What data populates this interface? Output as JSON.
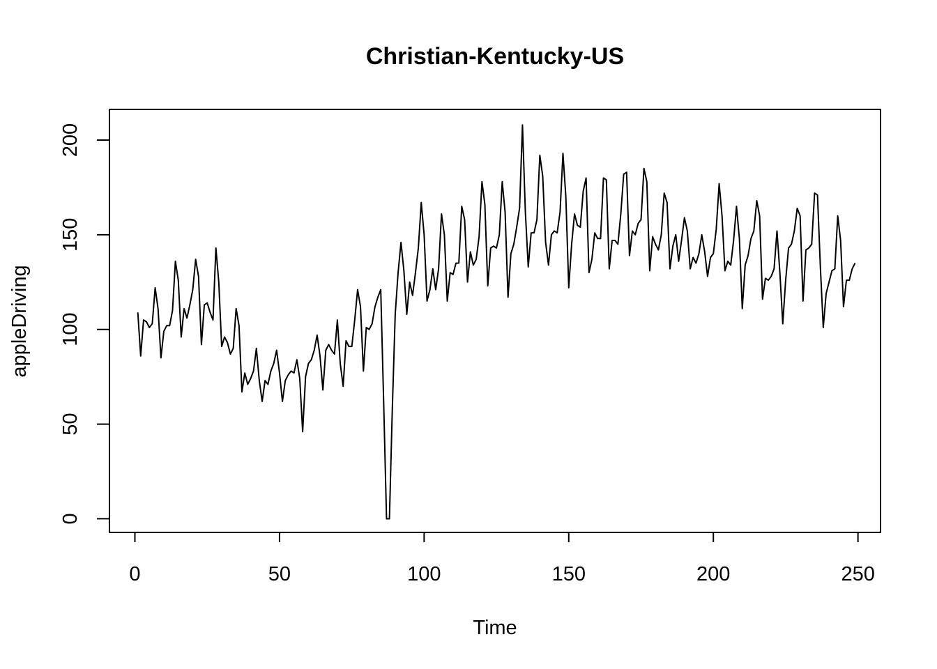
{
  "chart_data": {
    "type": "line",
    "title": "Christian-Kentucky-US",
    "xlabel": "Time",
    "ylabel": "appleDriving",
    "xlim": [
      -8.8,
      257.8
    ],
    "ylim": [
      -7.2,
      216.2
    ],
    "x_ticks": [
      0,
      50,
      100,
      150,
      200,
      250
    ],
    "y_ticks": [
      0,
      50,
      100,
      150,
      200
    ],
    "grid": false,
    "legend": "none",
    "line_color": "#000000",
    "x_start": 1,
    "values": [
      109,
      86,
      105,
      104,
      101,
      103,
      122,
      111,
      85,
      99,
      102,
      102,
      110,
      136,
      126,
      96,
      111,
      106,
      113,
      121,
      137,
      128,
      92,
      113,
      114,
      109,
      105,
      143,
      125,
      91,
      96,
      93,
      87,
      90,
      111,
      102,
      67,
      77,
      71,
      74,
      78,
      90,
      73,
      62,
      73,
      71,
      78,
      82,
      89,
      77,
      62,
      73,
      76,
      78,
      77,
      84,
      74,
      46,
      75,
      82,
      84,
      89,
      97,
      86,
      68,
      89,
      92,
      89,
      87,
      105,
      82,
      70,
      94,
      91,
      91,
      105,
      121,
      112,
      78,
      101,
      100,
      103,
      112,
      117,
      121,
      62,
      0,
      0,
      58,
      108,
      130,
      146,
      131,
      108,
      125,
      118,
      130,
      143,
      167,
      150,
      115,
      121,
      132,
      121,
      132,
      161,
      150,
      115,
      130,
      129,
      135,
      135,
      165,
      158,
      125,
      141,
      134,
      137,
      149,
      178,
      166,
      123,
      143,
      144,
      143,
      150,
      178,
      162,
      117,
      140,
      145,
      154,
      164,
      208,
      162,
      133,
      151,
      151,
      158,
      192,
      181,
      146,
      134,
      150,
      152,
      151,
      162,
      193,
      170,
      122,
      145,
      161,
      155,
      154,
      173,
      180,
      130,
      137,
      151,
      148,
      148,
      180,
      179,
      132,
      147,
      147,
      145,
      161,
      182,
      183,
      139,
      152,
      150,
      156,
      158,
      185,
      178,
      131,
      149,
      145,
      142,
      150,
      172,
      167,
      132,
      144,
      150,
      136,
      147,
      159,
      152,
      132,
      138,
      135,
      140,
      150,
      141,
      128,
      138,
      140,
      153,
      177,
      160,
      131,
      136,
      134,
      147,
      165,
      148,
      111,
      134,
      139,
      148,
      152,
      168,
      160,
      116,
      127,
      126,
      128,
      132,
      152,
      130,
      103,
      126,
      143,
      145,
      152,
      164,
      160,
      115,
      142,
      143,
      145,
      172,
      171,
      133,
      101,
      119,
      125,
      131,
      132,
      160,
      147,
      112,
      126,
      126,
      132,
      135
    ]
  }
}
